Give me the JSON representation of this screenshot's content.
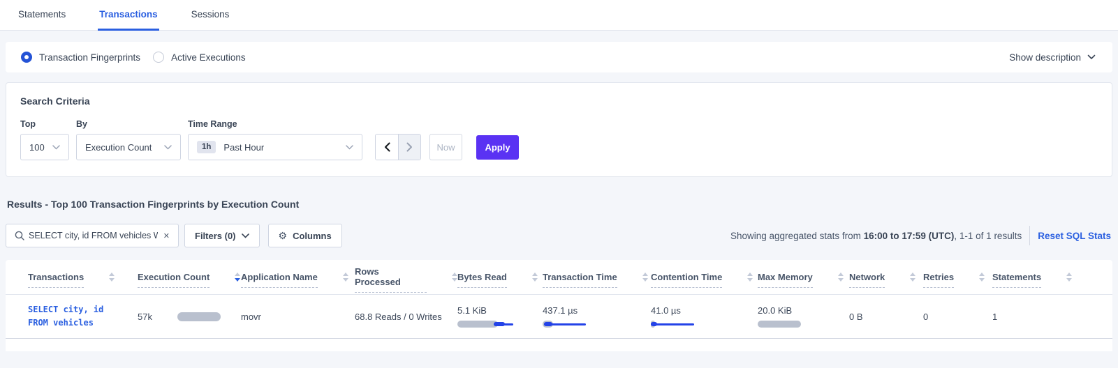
{
  "tabs": [
    {
      "label": "Statements",
      "active": false
    },
    {
      "label": "Transactions",
      "active": true
    },
    {
      "label": "Sessions",
      "active": false
    }
  ],
  "view_toggle": {
    "options": [
      {
        "label": "Transaction Fingerprints",
        "selected": true
      },
      {
        "label": "Active Executions",
        "selected": false
      }
    ],
    "show_description": "Show description"
  },
  "search_criteria": {
    "title": "Search Criteria",
    "top": {
      "label": "Top",
      "value": "100"
    },
    "by": {
      "label": "By",
      "value": "Execution Count"
    },
    "time_range": {
      "label": "Time Range",
      "badge": "1h",
      "value": "Past Hour"
    },
    "now_label": "Now",
    "apply_label": "Apply"
  },
  "results": {
    "heading": "Results - Top 100 Transaction Fingerprints by Execution Count",
    "search_value": "SELECT city, id FROM vehicles WHE",
    "clear_icon": "✕",
    "filters_label": "Filters (0)",
    "columns_label": "Columns",
    "gear_icon": "⚙",
    "stats_prefix": "Showing aggregated stats from ",
    "stats_range": "16:00 to 17:59 (UTC)",
    "stats_suffix": ", 1-1 of 1 results",
    "reset_link": "Reset SQL Stats"
  },
  "table": {
    "columns": [
      "Transactions",
      "Execution Count",
      "Application Name",
      "Rows Processed",
      "Bytes Read",
      "Transaction Time",
      "Contention Time",
      "Max Memory",
      "Network",
      "Retries",
      "Statements"
    ],
    "sort": {
      "column": "Execution Count",
      "direction": "desc"
    },
    "row": {
      "transaction_line1": "SELECT city, id",
      "transaction_line2": "FROM vehicles",
      "execution_count": "57k",
      "application_name": "movr",
      "rows_processed": "68.8 Reads / 0 Writes",
      "bytes_read": "5.1 KiB",
      "transaction_time": "437.1 µs",
      "contention_time": "41.0 µs",
      "max_memory": "20.0 KiB",
      "network": "0 B",
      "retries": "0",
      "statements": "1",
      "bars": {
        "execution_count": {
          "gray": 62
        },
        "bytes_read": {
          "gray": 58,
          "thick": [
            52,
            16
          ],
          "line": [
            52,
            28
          ]
        },
        "transaction_time": {
          "gray": 15,
          "thick": [
            2,
            12
          ],
          "line": [
            2,
            60
          ]
        },
        "contention_time": {
          "gray": 6,
          "thick": [
            0,
            9
          ],
          "line": [
            0,
            62
          ]
        },
        "max_memory": {
          "gray": 62
        }
      }
    }
  },
  "colors": {
    "accent_blue": "#2a5fe0",
    "apply_purple": "#5a32f3",
    "bar_gray": "#b9c0ce",
    "bar_blue": "#2443e8"
  }
}
